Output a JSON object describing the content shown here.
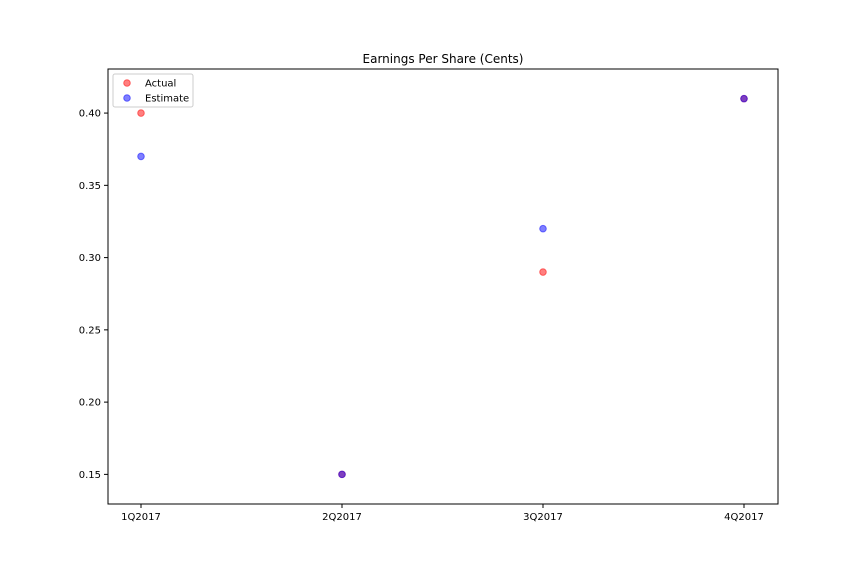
{
  "chart_data": {
    "type": "scatter",
    "title": "Earnings Per Share (Cents)",
    "xlabel": "",
    "ylabel": "",
    "categories": [
      "1Q2017",
      "2Q2017",
      "3Q2017",
      "4Q2017"
    ],
    "series": [
      {
        "name": "Actual",
        "values": [
          0.4,
          0.15,
          0.29,
          0.41
        ],
        "color": "#ff0000"
      },
      {
        "name": "Estimate",
        "values": [
          0.37,
          0.15,
          0.32,
          0.41
        ],
        "color": "#0000ff"
      }
    ],
    "ylim": [
      0.1295,
      0.4305
    ],
    "yticks": [
      0.15,
      0.2,
      0.25,
      0.3,
      0.35,
      0.4
    ],
    "ytick_labels": [
      "0.15",
      "0.20",
      "0.25",
      "0.30",
      "0.35",
      "0.40"
    ],
    "marker_alpha": 0.5,
    "grid": false,
    "legend_position": "top-left"
  }
}
